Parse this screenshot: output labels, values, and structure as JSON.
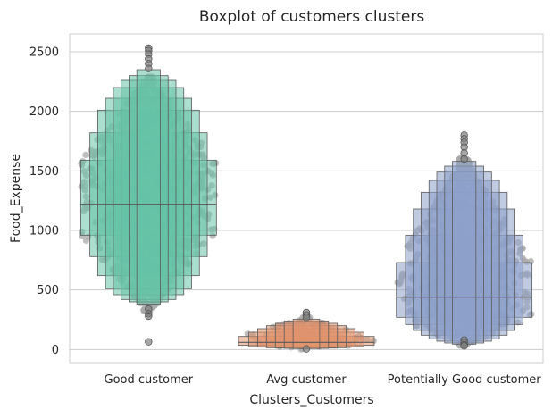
{
  "chart_data": {
    "type": "boxenplot",
    "title": "Boxplot of customers clusters",
    "xlabel": "Clusters_Customers",
    "ylabel": "Food_Expense",
    "categories": [
      "Good customer",
      "Avg customer",
      "Potentially Good customer"
    ],
    "yticks": [
      0,
      500,
      1000,
      1500,
      2000,
      2500
    ],
    "ylim": [
      -110,
      2650
    ],
    "grid": true,
    "colors": {
      "Good customer": "#66c2a5",
      "Avg customer": "#e0936e",
      "Potentially Good customer": "#8da0cb",
      "swarm_points": "#a9a9a9",
      "outliers": "#808080",
      "edges": "#595959"
    },
    "series": [
      {
        "category": "Good customer",
        "median": 1220,
        "boxes": [
          [
            960,
            1590
          ],
          [
            780,
            1820
          ],
          [
            620,
            2010
          ],
          [
            510,
            2110
          ],
          [
            460,
            2200
          ],
          [
            420,
            2260
          ],
          [
            400,
            2300
          ],
          [
            380,
            2350
          ]
        ],
        "outliers": [
          2530,
          2510,
          2480,
          2440,
          2400,
          2360,
          340,
          300,
          280,
          65
        ],
        "swarm_range": [
          300,
          2300
        ]
      },
      {
        "category": "Avg customer",
        "median": 60,
        "boxes": [
          [
            35,
            110
          ],
          [
            25,
            145
          ],
          [
            20,
            175
          ],
          [
            15,
            200
          ],
          [
            12,
            220
          ],
          [
            10,
            240
          ],
          [
            8,
            255
          ]
        ],
        "outliers": [
          310,
          290,
          270,
          5
        ],
        "swarm_range": [
          0,
          270
        ]
      },
      {
        "category": "Potentially Good customer",
        "median": 440,
        "boxes": [
          [
            270,
            730
          ],
          [
            210,
            960
          ],
          [
            160,
            1180
          ],
          [
            120,
            1320
          ],
          [
            90,
            1420
          ],
          [
            70,
            1490
          ],
          [
            55,
            1540
          ],
          [
            45,
            1580
          ]
        ],
        "outliers": [
          1800,
          1770,
          1740,
          1700,
          1650,
          1600,
          80,
          60,
          40,
          30
        ],
        "swarm_range": [
          30,
          1620
        ]
      }
    ]
  }
}
